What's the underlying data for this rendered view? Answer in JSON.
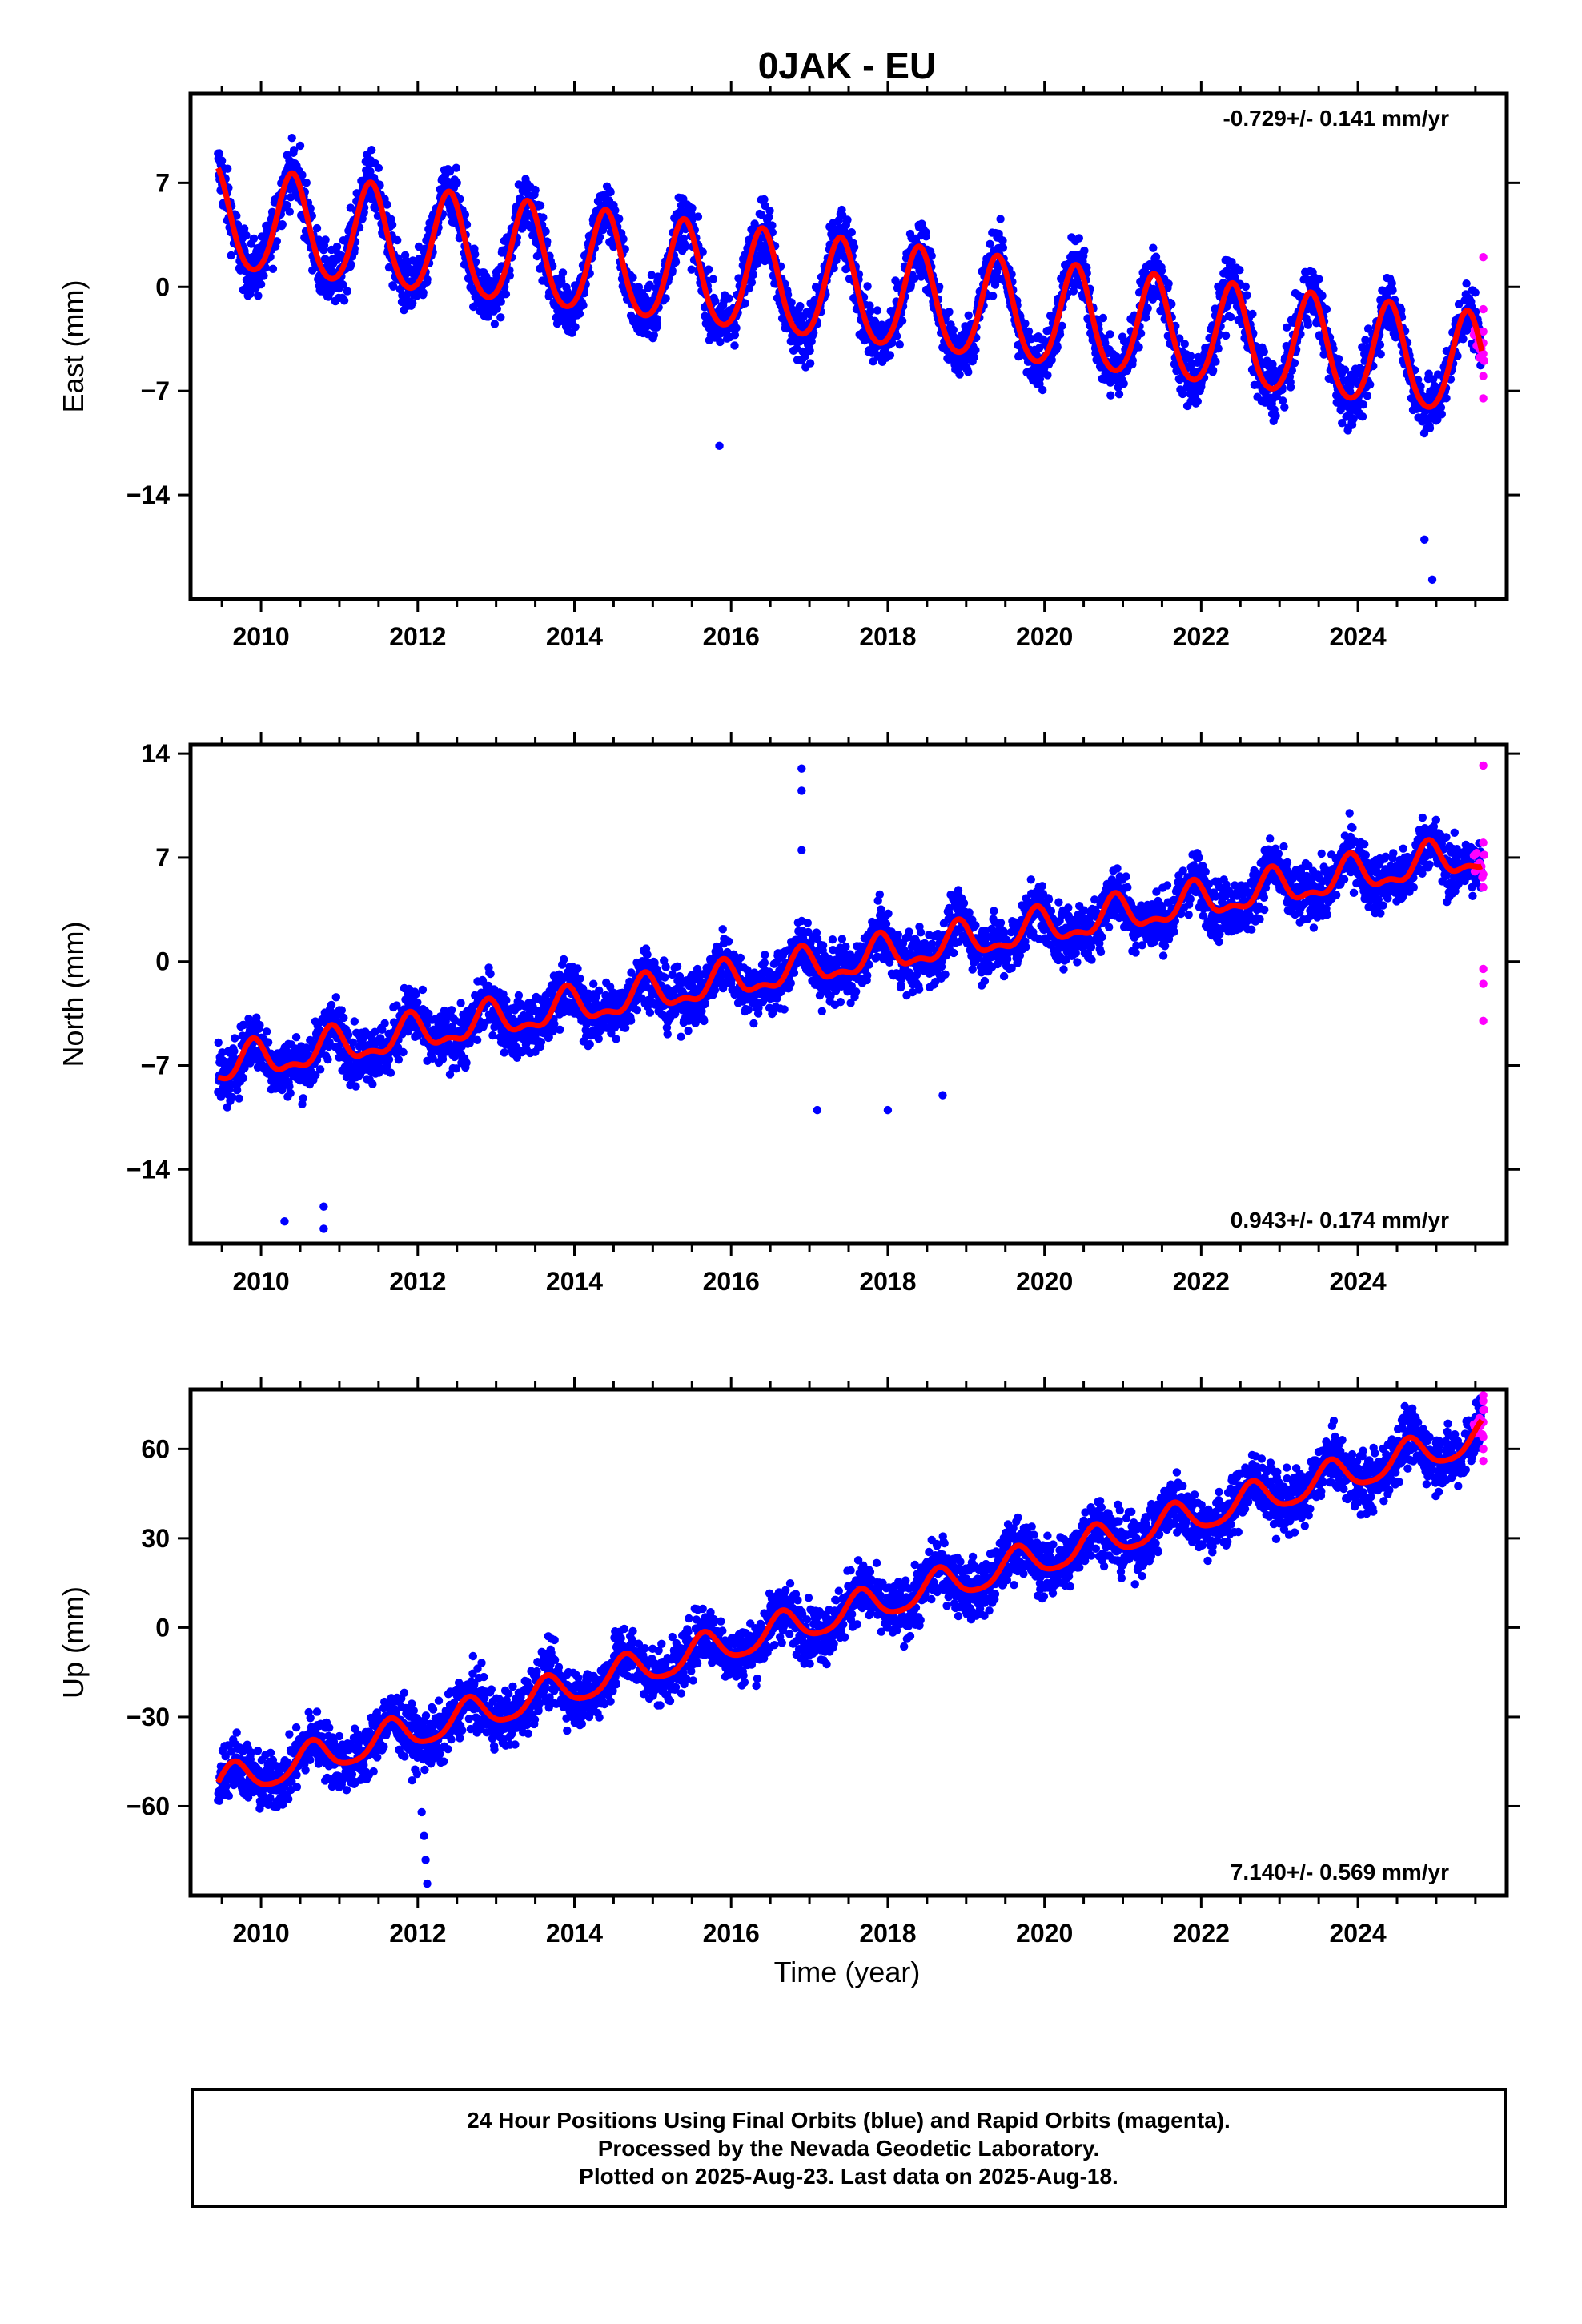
{
  "title": "0JAK - EU",
  "x_label": "Time (year)",
  "footer": {
    "line1": "24 Hour Positions Using Final Orbits (blue) and Rapid Orbits (magenta).",
    "line2": "Processed by the Nevada Geodetic Laboratory.",
    "line3": "Plotted on 2025-Aug-23. Last data on 2025-Aug-18."
  },
  "colors": {
    "final_orbits": "#0000ff",
    "rapid_orbits": "#ff00ff",
    "model_fit": "#ff0000",
    "axes": "#000000"
  },
  "chart_data": [
    {
      "type": "scatter",
      "component": "east",
      "ylabel": "East (mm)",
      "rate_label": "-0.729+/- 0.141 mm/yr",
      "rate_position": "top-right",
      "xlim": [
        2009.1,
        2025.9
      ],
      "ylim": [
        -21,
        13
      ],
      "xticks": [
        2010,
        2012,
        2014,
        2016,
        2018,
        2020,
        2022,
        2024
      ],
      "yticks": [
        -14,
        -7,
        0,
        7
      ],
      "grid": false,
      "model": {
        "start": [
          2009.45,
          8.0
        ],
        "end": [
          2025.58,
          -5.5
        ],
        "annual_amplitude": 3.4,
        "annual_peak": 2009.4,
        "semiannual_amplitude": 0.4
      },
      "series": [
        {
          "name": "Final Orbits (blue)",
          "x": [
            2009.5,
            2010.0,
            2010.5,
            2011.0,
            2011.5,
            2012.0,
            2012.5,
            2013.0,
            2013.5,
            2014.0,
            2014.5,
            2015.0,
            2015.5,
            2016.0,
            2016.5,
            2017.0,
            2017.5,
            2018.0,
            2018.5,
            2019.0,
            2019.5,
            2020.0,
            2020.5,
            2021.0,
            2021.5,
            2022.0,
            2022.5,
            2023.0,
            2023.5,
            2024.0,
            2024.5,
            2025.0,
            2025.5
          ],
          "y": [
            8.5,
            2.5,
            9.5,
            2.0,
            8.0,
            1.0,
            7.0,
            0.0,
            6.5,
            -1.0,
            5.5,
            -1.5,
            4.5,
            -2.5,
            4.0,
            -3.0,
            3.0,
            -3.5,
            2.5,
            -4.5,
            1.5,
            -5.0,
            1.0,
            -5.5,
            0.5,
            -6.5,
            -0.5,
            -7.0,
            -1.0,
            -8.0,
            -2.0,
            -9.0,
            -3.0
          ]
        },
        {
          "name": "Rapid Orbits (magenta)",
          "x": [
            2025.6,
            2025.6,
            2025.6,
            2025.6,
            2025.6,
            2025.6
          ],
          "y": [
            2.0,
            -1.5,
            -3.0,
            -4.5,
            -6.0,
            -7.5
          ]
        }
      ],
      "outliers": {
        "x": [
          2015.85,
          2024.85,
          2024.95
        ],
        "y": [
          -10.7,
          -17.0,
          -19.7
        ]
      }
    },
    {
      "type": "scatter",
      "component": "north",
      "ylabel": "North (mm)",
      "rate_label": "0.943+/- 0.174 mm/yr",
      "rate_position": "bottom-right",
      "xlim": [
        2009.1,
        2025.9
      ],
      "ylim": [
        -19,
        14.6
      ],
      "xticks": [
        2010,
        2012,
        2014,
        2016,
        2018,
        2020,
        2022,
        2024
      ],
      "yticks": [
        -14,
        -7,
        0,
        7,
        14
      ],
      "grid": false,
      "model": {
        "start": [
          2009.45,
          -7.8
        ],
        "end": [
          2025.58,
          7.2
        ],
        "annual_amplitude": 1.1,
        "annual_peak": 2009.9,
        "semiannual_amplitude": 0.5
      },
      "series": [
        {
          "name": "Final Orbits (blue)",
          "x": [
            2009.5,
            2010.0,
            2010.5,
            2011.0,
            2011.5,
            2012.0,
            2012.5,
            2013.0,
            2013.5,
            2014.0,
            2014.5,
            2015.0,
            2015.5,
            2016.0,
            2016.5,
            2017.0,
            2017.5,
            2018.0,
            2018.5,
            2019.0,
            2019.5,
            2020.0,
            2020.5,
            2021.0,
            2021.5,
            2022.0,
            2022.5,
            2023.0,
            2023.5,
            2024.0,
            2024.5,
            2025.0,
            2025.5
          ],
          "y": [
            -8.0,
            -7.0,
            -8.0,
            -6.0,
            -7.0,
            -5.0,
            -6.0,
            -4.0,
            -5.0,
            -3.5,
            -4.0,
            -2.0,
            -3.0,
            -1.5,
            -2.5,
            -0.5,
            -1.0,
            1.0,
            0.0,
            1.5,
            0.5,
            2.5,
            1.5,
            3.0,
            2.0,
            4.0,
            3.0,
            5.0,
            4.0,
            6.0,
            5.0,
            7.5,
            6.5
          ]
        },
        {
          "name": "Rapid Orbits (magenta)",
          "x": [
            2025.6,
            2025.6,
            2025.6,
            2025.6,
            2025.6,
            2025.6
          ],
          "y": [
            13.2,
            8.0,
            5.0,
            -0.5,
            -1.5,
            -4.0
          ]
        }
      ],
      "outliers": {
        "x": [
          2016.9,
          2016.9,
          2016.9,
          2017.1,
          2018.0,
          2018.7,
          2010.3,
          2010.8,
          2010.8
        ],
        "y": [
          13.0,
          11.5,
          7.5,
          -10.0,
          -10.0,
          -9.0,
          -17.5,
          -16.5,
          -18.0
        ]
      }
    },
    {
      "type": "scatter",
      "component": "up",
      "ylabel": "Up (mm)",
      "rate_label": "7.140+/- 0.569 mm/yr",
      "rate_position": "bottom-right",
      "xlim": [
        2009.1,
        2025.9
      ],
      "ylim": [
        -90,
        80
      ],
      "xticks": [
        2010,
        2012,
        2014,
        2016,
        2018,
        2020,
        2022,
        2024
      ],
      "yticks": [
        -60,
        -30,
        0,
        30,
        60
      ],
      "grid": false,
      "model": {
        "start": [
          2009.45,
          -52.0
        ],
        "end": [
          2025.58,
          64.0
        ],
        "annual_amplitude": 5.5,
        "annual_peak": 2009.65,
        "semiannual_amplitude": 1.0
      },
      "series": [
        {
          "name": "Final Orbits (blue)",
          "x": [
            2009.5,
            2010.0,
            2010.5,
            2011.0,
            2011.5,
            2012.0,
            2012.5,
            2013.0,
            2013.5,
            2014.0,
            2014.5,
            2015.0,
            2015.5,
            2016.0,
            2016.5,
            2017.0,
            2017.5,
            2018.0,
            2018.5,
            2019.0,
            2019.5,
            2020.0,
            2020.5,
            2021.0,
            2021.5,
            2022.0,
            2022.5,
            2023.0,
            2023.5,
            2024.0,
            2024.5,
            2025.0,
            2025.5
          ],
          "y": [
            -50,
            -56,
            -42,
            -50,
            -36,
            -42,
            -28,
            -36,
            -22,
            -28,
            -14,
            -21,
            -7,
            -14,
            0,
            -7,
            7,
            0,
            14,
            7,
            21,
            14,
            28,
            21,
            35,
            28,
            42,
            35,
            49,
            42,
            56,
            49,
            60
          ]
        },
        {
          "name": "Rapid Orbits (magenta)",
          "x": [
            2025.6,
            2025.6,
            2025.6,
            2025.6,
            2025.6,
            2025.6
          ],
          "y": [
            78,
            73,
            69,
            64,
            60,
            56
          ]
        }
      ],
      "outliers": {
        "x": [
          2012.05,
          2012.08,
          2012.1,
          2012.12
        ],
        "y": [
          -62,
          -70,
          -78,
          -86
        ]
      }
    }
  ]
}
